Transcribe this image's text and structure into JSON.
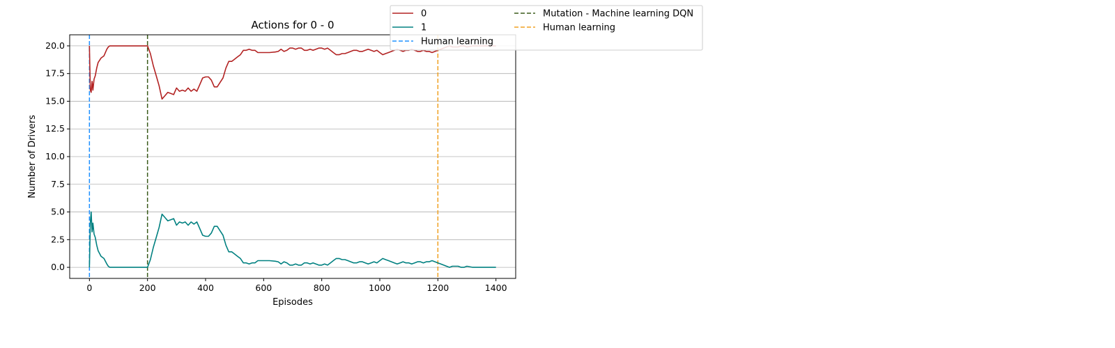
{
  "chart_data": {
    "type": "line",
    "title": "Actions for 0 - 0",
    "xlabel": "Episodes",
    "ylabel": "Number of Drivers",
    "xlim": [
      -68,
      1468
    ],
    "ylim": [
      -1,
      21
    ],
    "xticks": [
      0,
      200,
      400,
      600,
      800,
      1000,
      1200,
      1400
    ],
    "yticks": [
      0.0,
      2.5,
      5.0,
      7.5,
      10.0,
      12.5,
      15.0,
      17.5,
      20.0
    ],
    "xtick_labels": [
      "0",
      "200",
      "400",
      "600",
      "800",
      "1000",
      "1200",
      "1400"
    ],
    "ytick_labels": [
      "0.0",
      "2.5",
      "5.0",
      "7.5",
      "10.0",
      "12.5",
      "15.0",
      "17.5",
      "20.0"
    ],
    "grid": "horizontal",
    "legend_position": "upper-right outside",
    "series": [
      {
        "name": "0",
        "color": "#b22222",
        "style": "solid",
        "x": [
          0,
          3,
          6,
          9,
          12,
          16,
          20,
          25,
          30,
          40,
          50,
          60,
          65,
          70,
          80,
          100,
          130,
          160,
          190,
          200,
          210,
          220,
          230,
          240,
          250,
          260,
          270,
          280,
          290,
          300,
          310,
          320,
          330,
          340,
          350,
          360,
          370,
          380,
          390,
          400,
          410,
          420,
          430,
          440,
          450,
          460,
          470,
          480,
          490,
          500,
          510,
          520,
          530,
          540,
          550,
          560,
          570,
          580,
          600,
          620,
          640,
          650,
          660,
          670,
          680,
          690,
          700,
          710,
          720,
          730,
          740,
          750,
          760,
          770,
          780,
          790,
          800,
          810,
          820,
          830,
          840,
          850,
          860,
          870,
          880,
          890,
          900,
          910,
          920,
          930,
          940,
          950,
          960,
          970,
          980,
          990,
          1000,
          1010,
          1020,
          1030,
          1040,
          1050,
          1060,
          1070,
          1080,
          1090,
          1100,
          1110,
          1120,
          1130,
          1140,
          1150,
          1160,
          1170,
          1180,
          1190,
          1200,
          1210,
          1220,
          1230,
          1240,
          1250,
          1260,
          1270,
          1280,
          1290,
          1300,
          1320,
          1340,
          1360,
          1380,
          1400
        ],
        "y": [
          20.0,
          16.0,
          15.8,
          16.8,
          16.0,
          17.0,
          17.3,
          18.0,
          18.5,
          18.9,
          19.1,
          19.7,
          19.9,
          20.0,
          20.0,
          20.0,
          20.0,
          20.0,
          20.0,
          20.0,
          19.3,
          18.2,
          17.3,
          16.4,
          15.2,
          15.5,
          15.8,
          15.7,
          15.6,
          16.2,
          15.9,
          16.0,
          15.9,
          16.2,
          15.9,
          16.1,
          15.9,
          16.5,
          17.1,
          17.2,
          17.2,
          16.9,
          16.3,
          16.3,
          16.7,
          17.1,
          18.0,
          18.6,
          18.6,
          18.8,
          19.0,
          19.2,
          19.6,
          19.6,
          19.7,
          19.6,
          19.6,
          19.4,
          19.4,
          19.4,
          19.45,
          19.5,
          19.7,
          19.5,
          19.6,
          19.8,
          19.8,
          19.7,
          19.8,
          19.8,
          19.6,
          19.6,
          19.7,
          19.6,
          19.7,
          19.8,
          19.8,
          19.7,
          19.8,
          19.6,
          19.4,
          19.2,
          19.2,
          19.3,
          19.3,
          19.4,
          19.5,
          19.6,
          19.6,
          19.5,
          19.5,
          19.6,
          19.7,
          19.6,
          19.5,
          19.6,
          19.4,
          19.2,
          19.3,
          19.4,
          19.5,
          19.6,
          19.7,
          19.6,
          19.5,
          19.6,
          19.6,
          19.7,
          19.6,
          19.5,
          19.5,
          19.6,
          19.5,
          19.5,
          19.4,
          19.5,
          19.6,
          19.7,
          19.8,
          19.9,
          20.0,
          19.9,
          19.9,
          19.9,
          20.0,
          20.0,
          19.9,
          20.0,
          20.0,
          20.0,
          20.0,
          20.0
        ]
      },
      {
        "name": "1",
        "color": "#008080",
        "style": "solid",
        "x": [
          0,
          3,
          6,
          9,
          12,
          16,
          20,
          25,
          30,
          40,
          50,
          60,
          65,
          70,
          80,
          100,
          130,
          160,
          190,
          200,
          210,
          220,
          230,
          240,
          250,
          260,
          270,
          280,
          290,
          300,
          310,
          320,
          330,
          340,
          350,
          360,
          370,
          380,
          390,
          400,
          410,
          420,
          430,
          440,
          450,
          460,
          470,
          480,
          490,
          500,
          510,
          520,
          530,
          540,
          550,
          560,
          570,
          580,
          600,
          620,
          640,
          650,
          660,
          670,
          680,
          690,
          700,
          710,
          720,
          730,
          740,
          750,
          760,
          770,
          780,
          790,
          800,
          810,
          820,
          830,
          840,
          850,
          860,
          870,
          880,
          890,
          900,
          910,
          920,
          930,
          940,
          950,
          960,
          970,
          980,
          990,
          1000,
          1010,
          1020,
          1030,
          1040,
          1050,
          1060,
          1070,
          1080,
          1090,
          1100,
          1110,
          1120,
          1130,
          1140,
          1150,
          1160,
          1170,
          1180,
          1190,
          1200,
          1210,
          1220,
          1230,
          1240,
          1250,
          1260,
          1270,
          1280,
          1290,
          1300,
          1320,
          1340,
          1360,
          1380,
          1400
        ],
        "y": [
          0.0,
          4.0,
          5.0,
          3.2,
          4.0,
          3.0,
          2.7,
          2.0,
          1.5,
          1.0,
          0.8,
          0.3,
          0.1,
          0.0,
          0.0,
          0.0,
          0.0,
          0.0,
          0.0,
          0.0,
          0.7,
          1.8,
          2.7,
          3.6,
          4.8,
          4.5,
          4.2,
          4.3,
          4.4,
          3.8,
          4.1,
          4.0,
          4.1,
          3.8,
          4.1,
          3.9,
          4.1,
          3.5,
          2.9,
          2.8,
          2.8,
          3.1,
          3.7,
          3.7,
          3.3,
          2.9,
          2.0,
          1.4,
          1.4,
          1.2,
          1.0,
          0.8,
          0.4,
          0.4,
          0.3,
          0.4,
          0.4,
          0.6,
          0.6,
          0.6,
          0.55,
          0.5,
          0.3,
          0.5,
          0.4,
          0.2,
          0.2,
          0.3,
          0.2,
          0.2,
          0.4,
          0.4,
          0.3,
          0.4,
          0.3,
          0.2,
          0.2,
          0.3,
          0.2,
          0.4,
          0.6,
          0.8,
          0.8,
          0.7,
          0.7,
          0.6,
          0.5,
          0.4,
          0.4,
          0.5,
          0.5,
          0.4,
          0.3,
          0.4,
          0.5,
          0.4,
          0.6,
          0.8,
          0.7,
          0.6,
          0.5,
          0.4,
          0.3,
          0.4,
          0.5,
          0.4,
          0.4,
          0.3,
          0.4,
          0.5,
          0.5,
          0.4,
          0.5,
          0.5,
          0.6,
          0.5,
          0.4,
          0.3,
          0.2,
          0.1,
          0.0,
          0.1,
          0.1,
          0.1,
          0.0,
          0.0,
          0.1,
          0.0,
          0.0,
          0.0,
          0.0,
          0.0
        ]
      }
    ],
    "vlines": [
      {
        "name": "Human learning",
        "x": 0,
        "color": "#1e90ff",
        "style": "dashed"
      },
      {
        "name": "Mutation - Machine learning DQN",
        "x": 200,
        "color": "#3a5a1a",
        "style": "dashed"
      },
      {
        "name": "Human learning",
        "x": 1200,
        "color": "#f0a020",
        "style": "dashed"
      }
    ],
    "legend": [
      {
        "label": "0",
        "color": "#b22222",
        "style": "solid"
      },
      {
        "label": "1",
        "color": "#008080",
        "style": "solid"
      },
      {
        "label": "Human learning",
        "color": "#1e90ff",
        "style": "dashed"
      },
      {
        "label": "Mutation - Machine learning DQN",
        "color": "#3a5a1a",
        "style": "dashed"
      },
      {
        "label": "Human learning",
        "color": "#f0a020",
        "style": "dashed"
      }
    ]
  }
}
